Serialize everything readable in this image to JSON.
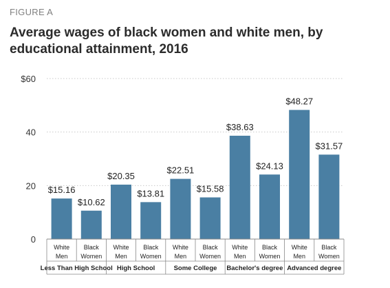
{
  "figure_label": "FIGURE A",
  "chart_data": {
    "type": "bar",
    "title": "Average wages of black women and white men, by educational attainment, 2016",
    "ylim": [
      0,
      60
    ],
    "yticks": [
      {
        "value": 0,
        "label": "0"
      },
      {
        "value": 20,
        "label": "20"
      },
      {
        "value": 40,
        "label": "40"
      },
      {
        "value": 60,
        "label": "$60"
      }
    ],
    "grid": true,
    "bar_color": "#4a7fa3",
    "groups": [
      {
        "name": "Less Than High School",
        "bars": [
          {
            "label1": "White",
            "label2": "Men",
            "value": 15.16,
            "value_label": "$15.16"
          },
          {
            "label1": "Black",
            "label2": "Women",
            "value": 10.62,
            "value_label": "$10.62"
          }
        ]
      },
      {
        "name": "High School",
        "bars": [
          {
            "label1": "White",
            "label2": "Men",
            "value": 20.35,
            "value_label": "$20.35"
          },
          {
            "label1": "Black",
            "label2": "Women",
            "value": 13.81,
            "value_label": "$13.81"
          }
        ]
      },
      {
        "name": "Some College",
        "bars": [
          {
            "label1": "White",
            "label2": "Men",
            "value": 22.51,
            "value_label": "$22.51"
          },
          {
            "label1": "Black",
            "label2": "Women",
            "value": 15.58,
            "value_label": "$15.58"
          }
        ]
      },
      {
        "name": "Bachelor's degree",
        "bars": [
          {
            "label1": "White",
            "label2": "Men",
            "value": 38.63,
            "value_label": "$38.63"
          },
          {
            "label1": "Black",
            "label2": "Women",
            "value": 24.13,
            "value_label": "$24.13"
          }
        ]
      },
      {
        "name": "Advanced degree",
        "bars": [
          {
            "label1": "White",
            "label2": "Men",
            "value": 48.27,
            "value_label": "$48.27"
          },
          {
            "label1": "Black",
            "label2": "Women",
            "value": 31.57,
            "value_label": "$31.57"
          }
        ]
      }
    ]
  }
}
